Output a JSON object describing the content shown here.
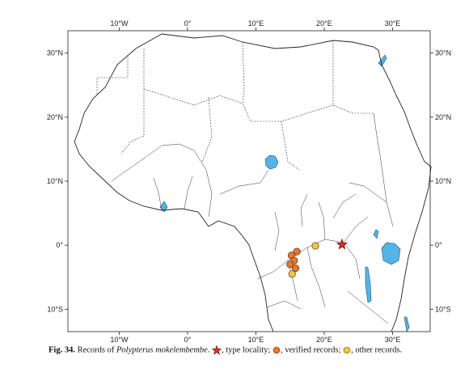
{
  "map": {
    "lon_range": [
      -17.5,
      35.5
    ],
    "lat_range": [
      -13.5,
      33.5
    ],
    "top_ticks": [
      {
        "lon": -10,
        "label": "10°W"
      },
      {
        "lon": 0,
        "label": "0°"
      },
      {
        "lon": 10,
        "label": "10°E"
      },
      {
        "lon": 20,
        "label": "20°E"
      },
      {
        "lon": 30,
        "label": "30°E"
      }
    ],
    "bottom_ticks": [
      {
        "lon": -10,
        "label": "10°W"
      },
      {
        "lon": 0,
        "label": "0°"
      },
      {
        "lon": 10,
        "label": "10°E"
      },
      {
        "lon": 20,
        "label": "20°E"
      },
      {
        "lon": 30,
        "label": "30°E"
      }
    ],
    "left_ticks": [
      {
        "lat": 30,
        "label": "30°N"
      },
      {
        "lat": 20,
        "label": "20°N"
      },
      {
        "lat": 10,
        "label": "10°N"
      },
      {
        "lat": 0,
        "label": "0°"
      },
      {
        "lat": -10,
        "label": "10°S"
      }
    ],
    "right_ticks": [
      {
        "lat": 30,
        "label": "30°N"
      },
      {
        "lat": 20,
        "label": "20°N"
      },
      {
        "lat": 10,
        "label": "10°N"
      },
      {
        "lat": 0,
        "label": "0°"
      },
      {
        "lat": -10,
        "label": "10°S"
      }
    ],
    "colors": {
      "type_locality": "#d8312a",
      "verified": "#e8772e",
      "other": "#f4c542",
      "water": "#55b4e6",
      "land_line": "#222222"
    },
    "records": {
      "type_locality": [
        {
          "lon": 22.6,
          "lat": 0.1
        }
      ],
      "verified": [
        {
          "lon": 16.0,
          "lat": -1.0
        },
        {
          "lon": 15.2,
          "lat": -1.6
        },
        {
          "lon": 15.6,
          "lat": -2.4
        },
        {
          "lon": 15.0,
          "lat": -3.0
        },
        {
          "lon": 15.8,
          "lat": -3.6
        }
      ],
      "other": [
        {
          "lon": 18.7,
          "lat": -0.1
        },
        {
          "lon": 15.3,
          "lat": -4.5
        }
      ]
    }
  },
  "caption": {
    "fig_label": "Fig. 34.",
    "text_before": "Records of",
    "species": "Polypterus mokelembembe",
    "type_locality": ", type locality;",
    "verified": ", verified records;",
    "other": ", other records."
  }
}
